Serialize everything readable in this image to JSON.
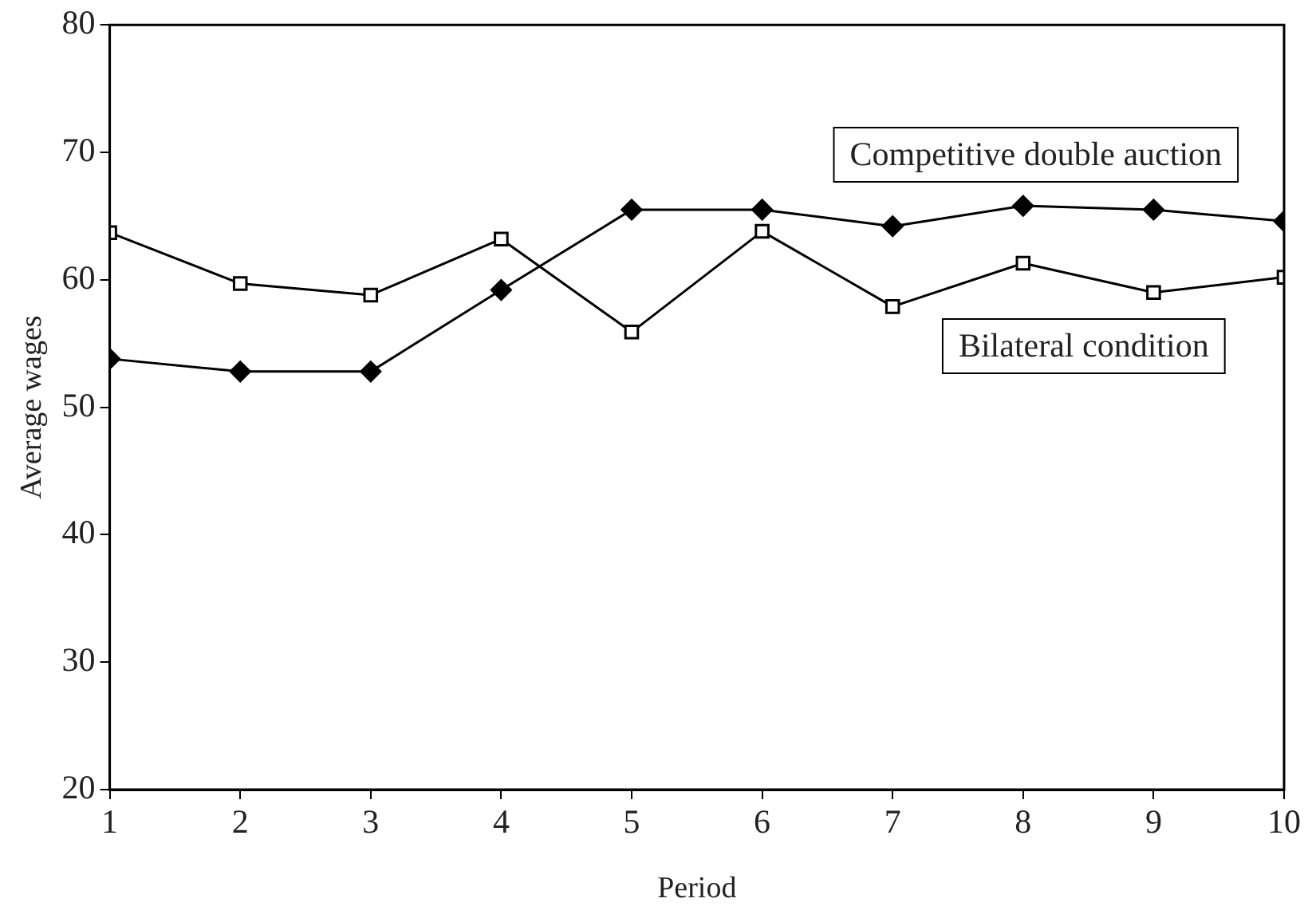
{
  "chart_data": {
    "type": "line",
    "xlabel": "Period",
    "ylabel": "Average wages",
    "x": [
      1,
      2,
      3,
      4,
      5,
      6,
      7,
      8,
      9,
      10
    ],
    "xlim": [
      1,
      10
    ],
    "xticks": [
      1,
      2,
      3,
      4,
      5,
      6,
      7,
      8,
      9,
      10
    ],
    "ylim": [
      20,
      80
    ],
    "yticks": [
      20,
      30,
      40,
      50,
      60,
      70,
      80
    ],
    "grid": false,
    "legend": false,
    "series": [
      {
        "name": "Competitive double auction",
        "color": "#000000",
        "marker": "diamond",
        "values": [
          53.8,
          52.8,
          52.8,
          59.2,
          65.5,
          65.5,
          64.2,
          65.8,
          65.5,
          64.6
        ]
      },
      {
        "name": "Bilateral condition",
        "color": "#000000",
        "marker": "square",
        "values": [
          63.7,
          59.7,
          58.8,
          63.2,
          55.9,
          63.8,
          57.9,
          61.3,
          59.0,
          60.2
        ]
      }
    ]
  }
}
